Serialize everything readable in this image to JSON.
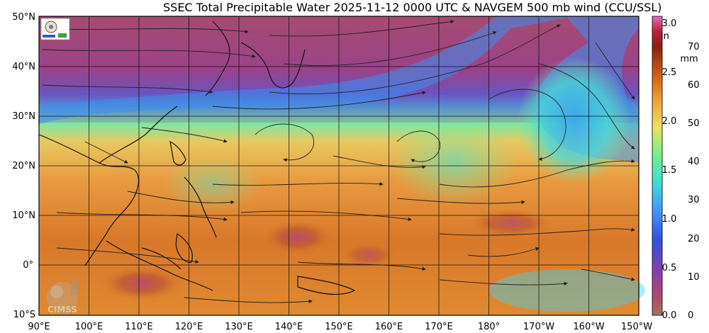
{
  "title": "SSEC Total Precipitable Water  2025-11-12 0000 UTC & NAVGEM 500 mb wind (CCU/SSL)",
  "lat_labels": [
    "50°N",
    "40°N",
    "30°N",
    "20°N",
    "10°N",
    "0°",
    "10°S"
  ],
  "lon_labels": [
    "90°E",
    "100°E",
    "110°E",
    "120°E",
    "130°E",
    "140°E",
    "150°E",
    "160°E",
    "170°E",
    "180°",
    "170°W",
    "160°W",
    "150°W"
  ],
  "colorbar": {
    "inch_unit": "in",
    "mm_unit": "mm",
    "inch_ticks": [
      "0.0",
      "0.5",
      "1.0",
      "1.5",
      "2.0",
      "2.5",
      "3.0"
    ],
    "mm_ticks": [
      "0",
      "10",
      "20",
      "30",
      "40",
      "50",
      "60",
      "70"
    ],
    "colors": [
      "#a0785a",
      "#b04a6a",
      "#8a3fb0",
      "#3050e0",
      "#40a0ff",
      "#40e0d0",
      "#80f080",
      "#f0e060",
      "#f0a030",
      "#d05a10",
      "#8a2010",
      "#c02040",
      "#e070c0"
    ]
  },
  "logos": {
    "top_left": "SSEC logo",
    "bottom_left": "CIMSS"
  }
}
